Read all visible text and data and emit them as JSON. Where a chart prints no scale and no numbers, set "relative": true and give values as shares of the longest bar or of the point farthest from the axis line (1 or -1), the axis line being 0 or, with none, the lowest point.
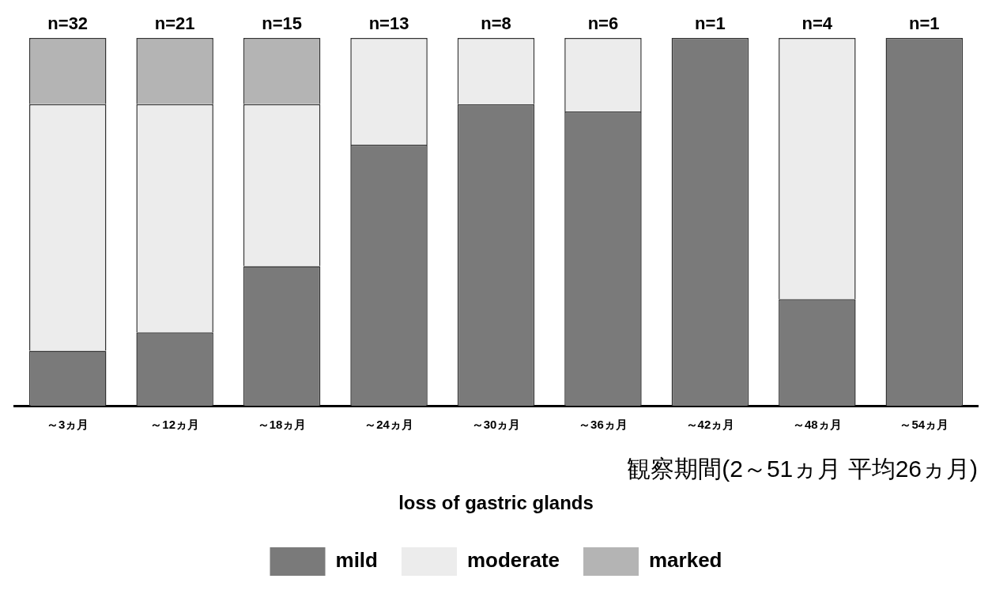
{
  "chart_data": {
    "type": "bar",
    "stacked": true,
    "relative": true,
    "categories": [
      "～3ヵ月",
      "～12ヵ月",
      "～18ヵ月",
      "～24ヵ月",
      "～30ヵ月",
      "～36ヵ月",
      "～42ヵ月",
      "～48ヵ月",
      "～54ヵ月"
    ],
    "series": [
      {
        "name": "mild",
        "color": "#7a7a7a",
        "values": [
          0.15,
          0.2,
          0.38,
          0.71,
          0.82,
          0.8,
          1,
          0.29,
          1
        ]
      },
      {
        "name": "moderate",
        "color": "#ececec",
        "values": [
          0.67,
          0.62,
          0.44,
          0.29,
          0.18,
          0.2,
          0,
          0.71,
          0
        ]
      },
      {
        "name": "marked",
        "color": "#b4b4b4",
        "values": [
          0.18,
          0.18,
          0.18,
          0,
          0,
          0,
          0,
          0,
          0
        ]
      }
    ],
    "annotations": [
      {
        "text": "n=32",
        "x": "～3ヵ月",
        "y": 1
      },
      {
        "text": "n=21",
        "x": "～12ヵ月",
        "y": 1
      },
      {
        "text": "n=15",
        "x": "～18ヵ月",
        "y": 1
      },
      {
        "text": "n=13",
        "x": "～24ヵ月",
        "y": 1
      },
      {
        "text": "n=8",
        "x": "～30ヵ月",
        "y": 1
      },
      {
        "text": "n=6",
        "x": "～36ヵ月",
        "y": 1
      },
      {
        "text": "n=1",
        "x": "～42ヵ月",
        "y": 1
      },
      {
        "text": "n=4",
        "x": "～48ヵ月",
        "y": 1
      },
      {
        "text": "n=1",
        "x": "～54ヵ月",
        "y": 1
      }
    ],
    "xlabel": "観察期間(2～51ヵ月 平均26ヵ月)",
    "legend_title": "loss of gastric glands",
    "legend": "bottom",
    "grid": false
  }
}
